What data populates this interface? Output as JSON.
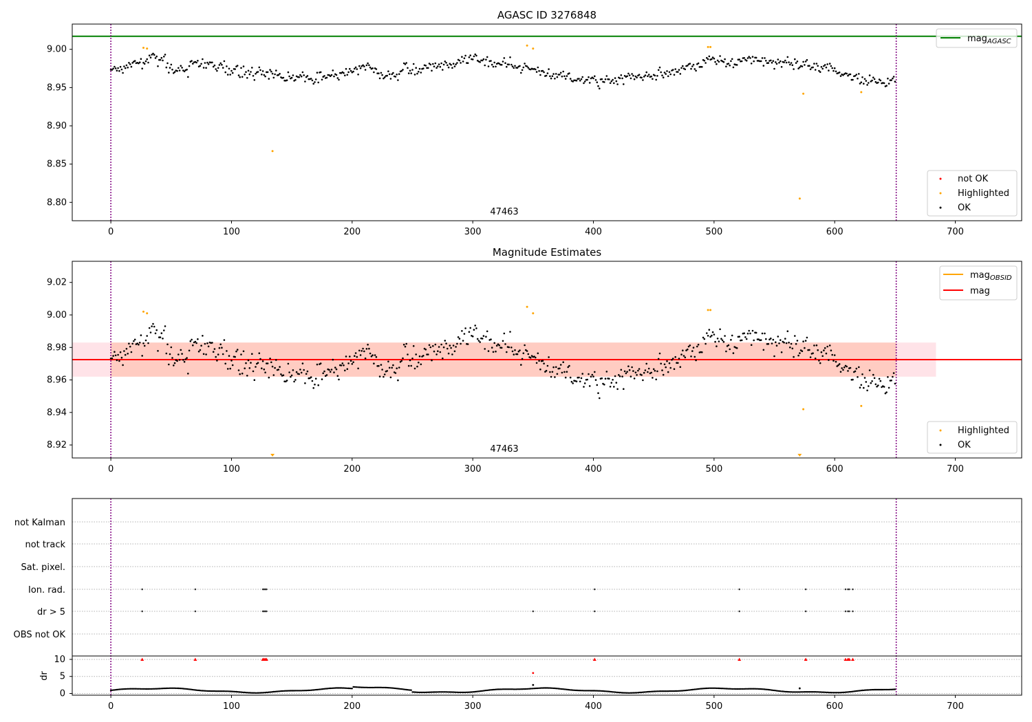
{
  "colors": {
    "ok": "#000000",
    "highlighted": "#ffa500",
    "not_ok": "#ff0000",
    "agasc_line": "#008000",
    "obs_line": "#ffa500",
    "mag_line": "#ff0000",
    "band_outer": "#ffc0cb",
    "band_inner": "#ffa07a",
    "obs_bound": "#800080"
  },
  "chart_data": [
    {
      "type": "scatter",
      "title": "AGASC ID 3276848",
      "xlabel": "",
      "ylabel": "",
      "xlim": [
        -32,
        755
      ],
      "ylim": [
        8.776,
        9.033
      ],
      "x_ticks": [
        "0",
        "100",
        "200",
        "300",
        "400",
        "500",
        "600",
        "700"
      ],
      "y_ticks": [
        "8.80",
        "8.85",
        "8.90",
        "8.95",
        "9.00"
      ],
      "obs_label": "47463",
      "obs_bounds": [
        0,
        651
      ],
      "mag_agasc": 9.017,
      "legend_top": {
        "label_main": "mag",
        "label_sub": "AGASC",
        "position": "upper right"
      },
      "legend_bottom": {
        "entries": [
          "not OK",
          "Highlighted",
          "OK"
        ],
        "position": "lower right"
      },
      "grid": false
    },
    {
      "type": "scatter",
      "title": "Magnitude Estimates",
      "xlabel": "",
      "ylabel": "",
      "xlim": [
        -32,
        755
      ],
      "ylim": [
        8.912,
        9.033
      ],
      "x_ticks": [
        "0",
        "100",
        "200",
        "300",
        "400",
        "500",
        "600",
        "700"
      ],
      "y_ticks": [
        "8.92",
        "8.94",
        "8.96",
        "8.98",
        "9.00",
        "9.02"
      ],
      "obs_label": "47463",
      "obs_bounds": [
        0,
        651
      ],
      "mag": 8.9725,
      "band_outer": [
        8.962,
        8.983,
        -32,
        684
      ],
      "band_inner": [
        8.962,
        8.983,
        0,
        651
      ],
      "legend_top": {
        "mag_obs_main": "mag",
        "mag_obs_sub": "OBSID",
        "mag_label": "mag",
        "position": "upper right"
      },
      "legend_bottom": {
        "entries": [
          "Highlighted",
          "OK"
        ],
        "position": "lower right"
      },
      "grid": false
    },
    {
      "type": "scatter",
      "title": "",
      "xlabel": "",
      "ylabel": "",
      "xlim": [
        -32,
        755
      ],
      "flag_labels": [
        "not Kalman",
        "not track",
        "Sat. pixel.",
        "Ion. rad.",
        "dr > 5",
        "OBS not OK"
      ],
      "flags": {
        "Ion. rad.": [
          26,
          70,
          126,
          127,
          128,
          129,
          401,
          521,
          576,
          609,
          611,
          612,
          615
        ],
        "dr > 5": [
          26,
          70,
          126,
          127,
          128,
          129,
          350,
          401,
          521,
          576,
          609,
          611,
          612,
          615
        ]
      },
      "dr_ylabel": "dr",
      "dr_ylim": [
        -0.5,
        11
      ],
      "dr_ticks": [
        "0",
        "5",
        "10"
      ],
      "dr_clip": 10,
      "dr_clipped_x": [
        26,
        70,
        126,
        127,
        128,
        129,
        401,
        521,
        576,
        609,
        611,
        612,
        615
      ],
      "dr_extra_points": [
        {
          "x": 350,
          "y": 6
        },
        {
          "x": 350,
          "y": 2.5
        },
        {
          "x": 571,
          "y": 1.5
        }
      ],
      "x_ticks": [
        "0",
        "100",
        "200",
        "300",
        "400",
        "500",
        "600",
        "700"
      ],
      "obs_bounds": [
        0,
        651
      ],
      "grid": true
    }
  ]
}
